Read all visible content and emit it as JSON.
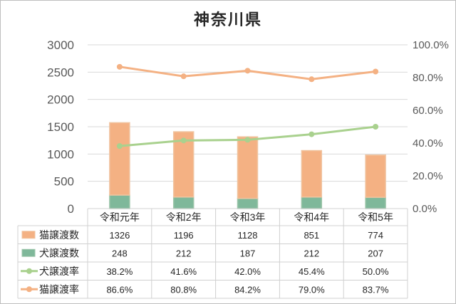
{
  "chart_data": {
    "type": "bar",
    "title": "神奈川県",
    "categories": [
      "令和元年",
      "令和2年",
      "令和3年",
      "令和4年",
      "令和5年"
    ],
    "y_left": {
      "range": [
        0,
        3000
      ],
      "ticks": [
        "0",
        "500",
        "1000",
        "1500",
        "2000",
        "2500",
        "3000"
      ]
    },
    "y_right": {
      "range": [
        0,
        100
      ],
      "ticks": [
        "0.0%",
        "20.0%",
        "40.0%",
        "60.0%",
        "80.0%",
        "100.0%"
      ]
    },
    "grid": true,
    "legend_placement": "data-table-bottom",
    "series": [
      {
        "name": "猫譲渡数",
        "kind": "bar-stack",
        "axis": "left",
        "color": "#F4B183",
        "values": [
          1326,
          1196,
          1128,
          851,
          774
        ],
        "labels": [
          "1326",
          "1196",
          "1128",
          "851",
          "774"
        ]
      },
      {
        "name": "犬譲渡数",
        "kind": "bar-stack",
        "axis": "left",
        "color": "#8FBC9B",
        "values": [
          248,
          212,
          187,
          212,
          207
        ],
        "labels": [
          "248",
          "212",
          "187",
          "212",
          "207"
        ]
      },
      {
        "name": "犬譲渡率",
        "kind": "line",
        "axis": "right",
        "color": "#A9D18E",
        "values": [
          38.2,
          41.6,
          42.0,
          45.4,
          50.0
        ],
        "labels": [
          "38.2%",
          "41.6%",
          "42.0%",
          "45.4%",
          "50.0%"
        ]
      },
      {
        "name": "猫譲渡率",
        "kind": "line",
        "axis": "right",
        "color": "#F4B183",
        "values": [
          86.6,
          80.8,
          84.2,
          79.0,
          83.7
        ],
        "labels": [
          "86.6%",
          "80.8%",
          "84.2%",
          "79.0%",
          "83.7%"
        ]
      }
    ],
    "stack_order_bottom_to_top": [
      "犬譲渡数",
      "猫譲渡数"
    ]
  }
}
